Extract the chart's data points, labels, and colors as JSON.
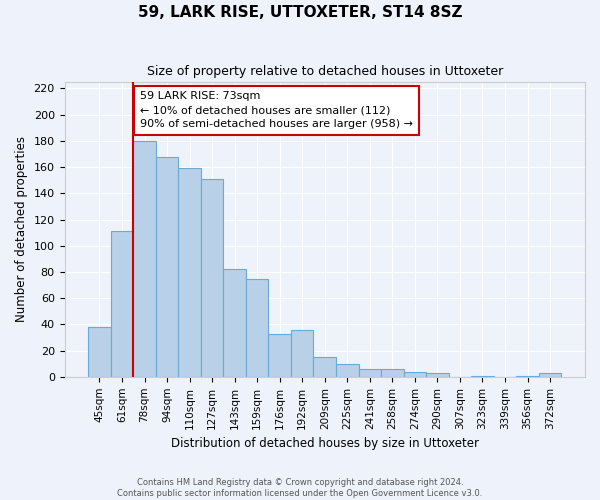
{
  "title": "59, LARK RISE, UTTOXETER, ST14 8SZ",
  "subtitle": "Size of property relative to detached houses in Uttoxeter",
  "xlabel": "Distribution of detached houses by size in Uttoxeter",
  "ylabel": "Number of detached properties",
  "categories": [
    "45sqm",
    "61sqm",
    "78sqm",
    "94sqm",
    "110sqm",
    "127sqm",
    "143sqm",
    "159sqm",
    "176sqm",
    "192sqm",
    "209sqm",
    "225sqm",
    "241sqm",
    "258sqm",
    "274sqm",
    "290sqm",
    "307sqm",
    "323sqm",
    "339sqm",
    "356sqm",
    "372sqm"
  ],
  "values": [
    38,
    111,
    180,
    168,
    159,
    151,
    82,
    75,
    33,
    36,
    15,
    10,
    6,
    6,
    4,
    3,
    0,
    1,
    0,
    1,
    3
  ],
  "bar_color": "#b8d0e8",
  "bar_edge_color": "#6aaad4",
  "background_color": "#eef2fb",
  "grid_color": "#ffffff",
  "vline_color": "#cc0000",
  "vline_x_index": 2,
  "annotation_title": "59 LARK RISE: 73sqm",
  "annotation_line1": "← 10% of detached houses are smaller (112)",
  "annotation_line2": "90% of semi-detached houses are larger (958) →",
  "annotation_box_facecolor": "#ffffff",
  "annotation_box_edgecolor": "#cc0000",
  "ylim": [
    0,
    225
  ],
  "yticks": [
    0,
    20,
    40,
    60,
    80,
    100,
    120,
    140,
    160,
    180,
    200,
    220
  ],
  "footer1": "Contains HM Land Registry data © Crown copyright and database right 2024.",
  "footer2": "Contains public sector information licensed under the Open Government Licence v3.0."
}
